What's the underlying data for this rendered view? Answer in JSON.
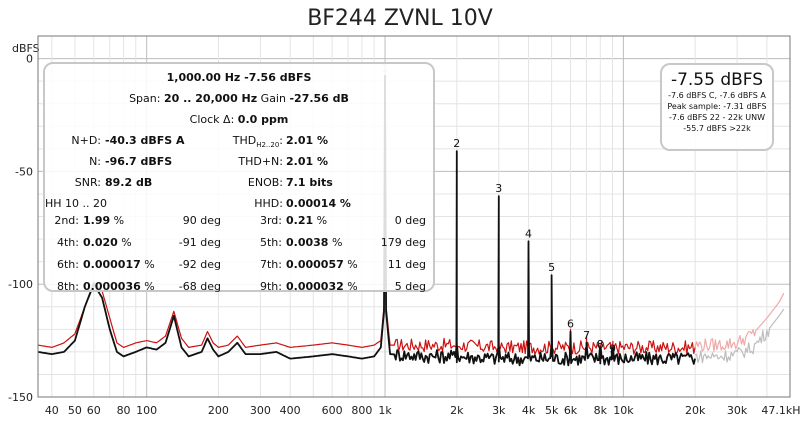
{
  "chart_data": {
    "type": "line",
    "title": "BF244 ZVNL 10V",
    "ylabel": "dBFS",
    "xlabel": "",
    "xscale": "log",
    "xlim": [
      35,
      50000
    ],
    "ylim": [
      -150,
      10
    ],
    "grid": true,
    "x_tick_labels": [
      {
        "v": 40,
        "t": "40"
      },
      {
        "v": 50,
        "t": "50"
      },
      {
        "v": 60,
        "t": "60"
      },
      {
        "v": 80,
        "t": "80"
      },
      {
        "v": 100,
        "t": "100"
      },
      {
        "v": 200,
        "t": "200"
      },
      {
        "v": 300,
        "t": "300"
      },
      {
        "v": 400,
        "t": "400"
      },
      {
        "v": 600,
        "t": "600"
      },
      {
        "v": 800,
        "t": "800"
      },
      {
        "v": 1000,
        "t": "1k"
      },
      {
        "v": 2000,
        "t": "2k"
      },
      {
        "v": 3000,
        "t": "3k"
      },
      {
        "v": 4000,
        "t": "4k"
      },
      {
        "v": 5000,
        "t": "5k"
      },
      {
        "v": 6000,
        "t": "6k"
      },
      {
        "v": 8000,
        "t": "8k"
      },
      {
        "v": 10000,
        "t": "10k"
      },
      {
        "v": 20000,
        "t": "20k"
      },
      {
        "v": 30000,
        "t": "30k"
      },
      {
        "v": 47100,
        "t": "47.1kHz"
      }
    ],
    "y_tick_labels": [
      {
        "v": 0,
        "t": "0"
      },
      {
        "v": -50,
        "t": "-50"
      },
      {
        "v": -100,
        "t": "-100"
      },
      {
        "v": -150,
        "t": "-150"
      }
    ],
    "harmonic_markers": [
      {
        "label": "1",
        "freq": 1000,
        "level": -7.56
      },
      {
        "label": "2",
        "freq": 2000,
        "level": -41
      },
      {
        "label": "3",
        "freq": 3000,
        "level": -61
      },
      {
        "label": "4",
        "freq": 4000,
        "level": -81
      },
      {
        "label": "5",
        "freq": 5000,
        "level": -96
      },
      {
        "label": "6",
        "freq": 6000,
        "level": -121
      },
      {
        "label": "7",
        "freq": 7000,
        "level": -126
      },
      {
        "label": "8",
        "freq": 8000,
        "level": -130
      },
      {
        "label": "9",
        "freq": 9000,
        "level": -132
      }
    ],
    "series": [
      {
        "color": "#cc1111",
        "points": [
          [
            35,
            -127
          ],
          [
            40,
            -128
          ],
          [
            45,
            -126
          ],
          [
            50,
            -122
          ],
          [
            55,
            -110
          ],
          [
            60,
            -99
          ],
          [
            65,
            -103
          ],
          [
            70,
            -115
          ],
          [
            75,
            -126
          ],
          [
            80,
            -128
          ],
          [
            90,
            -126
          ],
          [
            100,
            -125
          ],
          [
            110,
            -126
          ],
          [
            120,
            -123
          ],
          [
            130,
            -112
          ],
          [
            140,
            -124
          ],
          [
            150,
            -128
          ],
          [
            170,
            -127
          ],
          [
            180,
            -121
          ],
          [
            190,
            -126
          ],
          [
            200,
            -128
          ],
          [
            220,
            -127
          ],
          [
            240,
            -123
          ],
          [
            260,
            -128
          ],
          [
            300,
            -127
          ],
          [
            350,
            -126
          ],
          [
            400,
            -128
          ],
          [
            500,
            -127
          ],
          [
            600,
            -126
          ],
          [
            700,
            -127
          ],
          [
            800,
            -128
          ],
          [
            900,
            -127
          ],
          [
            960,
            -125
          ],
          [
            990,
            -110
          ],
          [
            1000,
            -7.56
          ],
          [
            1010,
            -110
          ],
          [
            1050,
            -127
          ],
          [
            1500,
            -127
          ],
          [
            2000,
            -127
          ],
          [
            3000,
            -128
          ],
          [
            5000,
            -128
          ],
          [
            8000,
            -128
          ],
          [
            12000,
            -128
          ],
          [
            20000,
            -128
          ]
        ]
      },
      {
        "color": "#111111",
        "points": [
          [
            35,
            -130
          ],
          [
            40,
            -131
          ],
          [
            45,
            -130
          ],
          [
            50,
            -125
          ],
          [
            55,
            -110
          ],
          [
            60,
            -100
          ],
          [
            65,
            -106
          ],
          [
            70,
            -120
          ],
          [
            75,
            -130
          ],
          [
            80,
            -132
          ],
          [
            90,
            -130
          ],
          [
            100,
            -128
          ],
          [
            110,
            -129
          ],
          [
            120,
            -126
          ],
          [
            130,
            -114
          ],
          [
            140,
            -128
          ],
          [
            150,
            -132
          ],
          [
            170,
            -130
          ],
          [
            180,
            -124
          ],
          [
            190,
            -129
          ],
          [
            200,
            -132
          ],
          [
            220,
            -130
          ],
          [
            240,
            -126
          ],
          [
            260,
            -131
          ],
          [
            300,
            -131
          ],
          [
            350,
            -130
          ],
          [
            400,
            -133
          ],
          [
            500,
            -132
          ],
          [
            600,
            -131
          ],
          [
            700,
            -132
          ],
          [
            800,
            -133
          ],
          [
            900,
            -132
          ],
          [
            960,
            -128
          ],
          [
            990,
            -112
          ],
          [
            1000,
            -7.56
          ],
          [
            1010,
            -112
          ],
          [
            1050,
            -131
          ],
          [
            1500,
            -132
          ],
          [
            2000,
            -132
          ],
          [
            3000,
            -133
          ],
          [
            5000,
            -133
          ],
          [
            8000,
            -133
          ],
          [
            12000,
            -133
          ],
          [
            20000,
            -133
          ]
        ]
      },
      {
        "color": "#f0aaaa",
        "points": [
          [
            20000,
            -127
          ],
          [
            25000,
            -127
          ],
          [
            30000,
            -126
          ],
          [
            35000,
            -122
          ],
          [
            40000,
            -115
          ],
          [
            45000,
            -108
          ],
          [
            47100,
            -104
          ]
        ]
      },
      {
        "color": "#bdbdbd",
        "points": [
          [
            20000,
            -132
          ],
          [
            25000,
            -132
          ],
          [
            30000,
            -131
          ],
          [
            35000,
            -128
          ],
          [
            40000,
            -121
          ],
          [
            45000,
            -114
          ],
          [
            47100,
            -111
          ]
        ]
      }
    ]
  },
  "info": {
    "line1": "1,000.00 Hz  -7.56 dBFS",
    "line2_span_label": "Span:",
    "line2_span": "20 .. 20,000 Hz",
    "line2_gain_label": "Gain",
    "line2_gain": "-27.56 dB",
    "line3_label": "Clock Δ:",
    "line3_value": "0.0 ppm",
    "rows": [
      {
        "l1": "N+D:",
        "v1": "-40.3 dBFS A",
        "l2": "THD",
        "l2sub": "H2..20",
        "l2b": ":",
        "v2": "2.01 %"
      },
      {
        "l1": "N:",
        "v1": "-96.7 dBFS",
        "l2": "THD+N:",
        "v2": "2.01 %"
      },
      {
        "l1": "SNR:",
        "v1": "89.2 dB",
        "l2": "ENOB:",
        "v2": "7.1 bits"
      },
      {
        "l1": "HH 10 .. 20",
        "v1": "",
        "l2": "HHD:",
        "v2": "0.00014 %"
      }
    ],
    "harm": [
      {
        "l1": "2nd:",
        "v1": "1.99",
        "u1": " %",
        "d1": "90 deg",
        "l2": "3rd:",
        "v2": "0.21",
        "u2": " %",
        "d2": "0 deg"
      },
      {
        "l1": "4th:",
        "v1": "0.020",
        "u1": " %",
        "d1": "-91 deg",
        "l2": "5th:",
        "v2": "0.0038",
        "u2": " %",
        "d2": "179 deg"
      },
      {
        "l1": "6th:",
        "v1": "0.000017",
        "u1": " %",
        "d1": "-92 deg",
        "l2": "7th:",
        "v2": "0.000057",
        "u2": " %",
        "d2": "11 deg"
      },
      {
        "l1": "8th:",
        "v1": "0.000036",
        "u1": " %",
        "d1": "-68 deg",
        "l2": "9th:",
        "v2": "0.000032",
        "u2": " %",
        "d2": "5 deg"
      }
    ]
  },
  "peak": {
    "value": "-7.55 dBFS",
    "line1": "-7.6 dBFS C, -7.6 dBFS A",
    "line2": "Peak sample: -7.31 dBFS",
    "line3": "-7.6 dBFS 22 - 22k UNW",
    "line4": "-55.7 dBFS >22k"
  }
}
